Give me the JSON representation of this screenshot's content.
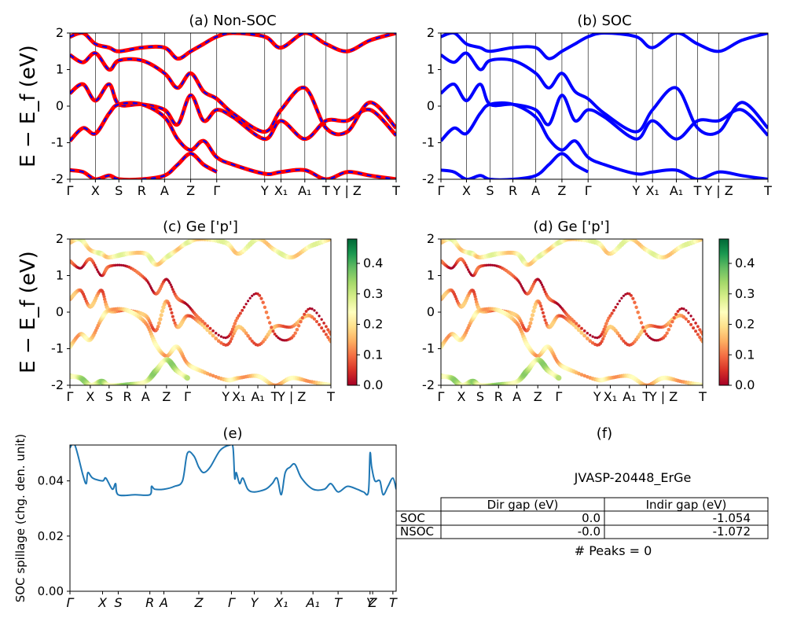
{
  "colors": {
    "nonsoc_line": "#ff0000",
    "soc_line": "#0000ff",
    "nonsoc_dash": "#0000ff",
    "spillage_line": "#1f77b4"
  },
  "panel_a": {
    "title": "(a) Non-SOC",
    "ylabel": "E − E_f (eV)"
  },
  "panel_b": {
    "title": "(b) SOC"
  },
  "panel_c": {
    "title": "(c)  Ge ['p']",
    "ylabel": "E − E_f (eV)"
  },
  "panel_d": {
    "title": "(d) Ge ['p']"
  },
  "panel_e": {
    "title": "(e)",
    "ylabel": "SOC spillage (chg. den. unit)"
  },
  "panel_f": {
    "title": "(f)",
    "material": "JVASP-20448_ErGe",
    "table": {
      "headers": [
        "",
        "Dir gap (eV)",
        "Indir gap (eV)"
      ],
      "rows": [
        [
          "SOC",
          "0.0",
          "-1.054"
        ],
        [
          "NSOC",
          "-0.0",
          "-1.072"
        ]
      ]
    },
    "peaks": "# Peaks = 0"
  },
  "colorbar": {
    "ticks": [
      "0.0",
      "0.1",
      "0.2",
      "0.3",
      "0.4"
    ],
    "max": 0.48,
    "colormap": "RdYlGn"
  },
  "chart_data": [
    {
      "type": "line",
      "panel": "a",
      "title": "(a) Non-SOC",
      "ylabel": "E − E_f (eV)",
      "ylim": [
        -2,
        2
      ],
      "yticks": [
        -2,
        -1,
        0,
        1,
        2
      ],
      "kpath_labels": [
        "Γ",
        "X",
        "S",
        "R",
        "A",
        "Z",
        "Γ",
        "Y",
        "X₁",
        "A₁",
        "T",
        "Y | Z",
        "T"
      ],
      "kpath_positions": [
        0,
        0.078,
        0.15,
        0.22,
        0.29,
        0.37,
        0.45,
        0.597,
        0.647,
        0.72,
        0.785,
        0.85,
        1.0
      ],
      "series": [
        {
          "x": [
            0,
            0.04,
            0.078,
            0.12,
            0.15,
            0.22,
            0.29,
            0.33,
            0.37,
            0.41,
            0.45,
            0.5,
            0.597,
            0.647,
            0.72,
            0.785,
            0.85,
            0.92,
            1.0
          ],
          "y": [
            0.35,
            0.6,
            0.15,
            0.6,
            0.05,
            0.05,
            -0.1,
            -0.5,
            0.3,
            -0.4,
            -0.1,
            -0.3,
            -0.9,
            -0.4,
            -0.9,
            -0.4,
            -0.4,
            -0.1,
            -0.8
          ]
        },
        {
          "x": [
            0,
            0.04,
            0.078,
            0.12,
            0.15,
            0.22,
            0.29,
            0.33,
            0.37,
            0.41,
            0.45,
            0.5,
            0.597,
            0.647,
            0.72,
            0.785,
            0.85,
            0.92,
            1.0
          ],
          "y": [
            1.4,
            1.2,
            1.45,
            1.0,
            1.25,
            1.25,
            0.9,
            0.5,
            0.9,
            0.4,
            0.2,
            -0.2,
            -0.7,
            -0.1,
            0.5,
            -0.6,
            -0.7,
            0.1,
            -0.6
          ]
        },
        {
          "x": [
            0,
            0.04,
            0.078,
            0.12,
            0.15,
            0.22,
            0.29,
            0.33,
            0.37,
            0.41,
            0.45,
            0.5,
            0.597,
            0.647,
            0.72,
            0.785,
            0.85,
            0.92,
            1.0
          ],
          "y": [
            -0.95,
            -0.6,
            -0.75,
            -0.2,
            0.05,
            0.05,
            -0.3,
            -0.9,
            -1.2,
            -0.95,
            -1.4,
            -1.6,
            -1.85,
            -1.8,
            -1.75,
            -2.0,
            -1.8,
            -1.9,
            -2.0
          ]
        },
        {
          "x": [
            0,
            0.04,
            0.078,
            0.12,
            0.15,
            0.22,
            0.29,
            0.33,
            0.37,
            0.41,
            0.45
          ],
          "y": [
            -1.75,
            -1.8,
            -2.0,
            -1.9,
            -2.0,
            -2.0,
            -1.9,
            -1.6,
            -1.3,
            -1.6,
            -1.8
          ]
        },
        {
          "x": [
            0,
            0.04,
            0.078,
            0.12,
            0.15,
            0.22,
            0.29,
            0.33,
            0.37,
            0.41,
            0.45,
            0.5,
            0.597,
            0.647,
            0.72,
            0.785,
            0.85,
            0.92,
            1.0
          ],
          "y": [
            1.9,
            2.0,
            1.7,
            1.6,
            1.5,
            1.6,
            1.6,
            1.3,
            1.5,
            1.7,
            1.9,
            2.0,
            1.9,
            1.6,
            2.0,
            1.7,
            1.5,
            1.8,
            2.0
          ]
        }
      ]
    },
    {
      "type": "line",
      "panel": "b",
      "title": "(b) SOC",
      "ylim": [
        -2,
        2
      ],
      "yticks": [
        -2,
        -1,
        0,
        1,
        2
      ],
      "kpath_labels": [
        "Γ",
        "X",
        "S",
        "R",
        "A",
        "Z",
        "Γ",
        "Y",
        "X₁",
        "A₁",
        "T",
        "Y | Z",
        "T"
      ],
      "kpath_positions": [
        0,
        0.078,
        0.15,
        0.22,
        0.29,
        0.37,
        0.45,
        0.597,
        0.647,
        0.72,
        0.785,
        0.85,
        1.0
      ],
      "series": [
        {
          "x": [
            0,
            0.04,
            0.078,
            0.12,
            0.15,
            0.22,
            0.29,
            0.33,
            0.37,
            0.41,
            0.45,
            0.5,
            0.597,
            0.647,
            0.72,
            0.785,
            0.85,
            0.92,
            1.0
          ],
          "y": [
            0.35,
            0.6,
            0.15,
            0.6,
            0.05,
            0.05,
            -0.1,
            -0.5,
            0.3,
            -0.4,
            -0.1,
            -0.3,
            -0.9,
            -0.4,
            -0.9,
            -0.4,
            -0.4,
            -0.1,
            -0.8
          ]
        },
        {
          "x": [
            0,
            0.04,
            0.078,
            0.12,
            0.15,
            0.22,
            0.29,
            0.33,
            0.37,
            0.41,
            0.45,
            0.5,
            0.597,
            0.647,
            0.72,
            0.785,
            0.85,
            0.92,
            1.0
          ],
          "y": [
            1.4,
            1.2,
            1.45,
            1.0,
            1.25,
            1.25,
            0.9,
            0.5,
            0.9,
            0.4,
            0.2,
            -0.2,
            -0.7,
            -0.1,
            0.5,
            -0.6,
            -0.7,
            0.1,
            -0.6
          ]
        },
        {
          "x": [
            0,
            0.04,
            0.078,
            0.12,
            0.15,
            0.22,
            0.29,
            0.33,
            0.37,
            0.41,
            0.45,
            0.5,
            0.597,
            0.647,
            0.72,
            0.785,
            0.85,
            0.92,
            1.0
          ],
          "y": [
            -0.95,
            -0.6,
            -0.75,
            -0.2,
            0.05,
            0.05,
            -0.3,
            -0.9,
            -1.2,
            -0.95,
            -1.4,
            -1.6,
            -1.85,
            -1.8,
            -1.75,
            -2.0,
            -1.8,
            -1.9,
            -2.0
          ]
        },
        {
          "x": [
            0,
            0.04,
            0.078,
            0.12,
            0.15,
            0.22,
            0.29,
            0.33,
            0.37,
            0.41,
            0.45
          ],
          "y": [
            -1.75,
            -1.8,
            -2.0,
            -1.9,
            -2.0,
            -2.0,
            -1.9,
            -1.6,
            -1.3,
            -1.6,
            -1.8
          ]
        },
        {
          "x": [
            0,
            0.04,
            0.078,
            0.12,
            0.15,
            0.22,
            0.29,
            0.33,
            0.37,
            0.41,
            0.45,
            0.5,
            0.597,
            0.647,
            0.72,
            0.785,
            0.85,
            0.92,
            1.0
          ],
          "y": [
            1.9,
            2.0,
            1.7,
            1.6,
            1.5,
            1.6,
            1.6,
            1.3,
            1.5,
            1.7,
            1.9,
            2.0,
            1.9,
            1.6,
            2.0,
            1.7,
            1.5,
            1.8,
            2.0
          ]
        }
      ]
    },
    {
      "type": "scatter",
      "panel": "c",
      "title": "(c)  Ge ['p']",
      "ylabel": "E − E_f (eV)",
      "ylim": [
        -2,
        2
      ],
      "yticks": [
        -2,
        -1,
        0,
        1,
        2
      ],
      "kpath_labels": [
        "Γ",
        "X",
        "S",
        "R",
        "A",
        "Z",
        "Γ",
        "Y",
        "X₁",
        "A₁",
        "T",
        "Y | Z",
        "T"
      ],
      "kpath_positions": [
        0,
        0.078,
        0.15,
        0.22,
        0.29,
        0.37,
        0.45,
        0.597,
        0.647,
        0.72,
        0.785,
        0.85,
        1.0
      ],
      "band_weights": [
        0.12,
        0.05,
        0.18,
        0.3,
        0.22
      ],
      "note": "projected weights of Ge p orbitals, colored 0.0–0.48"
    },
    {
      "type": "scatter",
      "panel": "d",
      "title": "(d) Ge ['p']",
      "ylim": [
        -2,
        2
      ],
      "yticks": [
        -2,
        -1,
        0,
        1,
        2
      ],
      "kpath_labels": [
        "Γ",
        "X",
        "S",
        "R",
        "A",
        "Z",
        "Γ",
        "Y",
        "X₁",
        "A₁",
        "T",
        "Y | Z",
        "T"
      ],
      "kpath_positions": [
        0,
        0.078,
        0.15,
        0.22,
        0.29,
        0.37,
        0.45,
        0.597,
        0.647,
        0.72,
        0.785,
        0.85,
        1.0
      ],
      "band_weights": [
        0.12,
        0.05,
        0.18,
        0.3,
        0.22
      ]
    },
    {
      "type": "line",
      "panel": "e",
      "title": "(e)",
      "ylabel": "SOC spillage (chg. den. unit)",
      "ylim": [
        0,
        0.053
      ],
      "yticks": [
        0.0,
        0.02,
        0.04
      ],
      "xtick_labels": [
        "Γ",
        "X",
        "S",
        "R",
        "A",
        "Z",
        "Γ",
        "Y",
        "X₁",
        "A₁",
        "T",
        "Y",
        "Z",
        "T"
      ],
      "xtick_positions": [
        0,
        0.1,
        0.148,
        0.245,
        0.288,
        0.395,
        0.495,
        0.565,
        0.648,
        0.745,
        0.822,
        0.92,
        0.928,
        0.99
      ],
      "x": [
        0,
        0.015,
        0.04,
        0.05,
        0.055,
        0.07,
        0.1,
        0.11,
        0.13,
        0.14,
        0.148,
        0.2,
        0.245,
        0.25,
        0.26,
        0.288,
        0.32,
        0.345,
        0.36,
        0.38,
        0.395,
        0.41,
        0.43,
        0.46,
        0.49,
        0.5,
        0.505,
        0.51,
        0.52,
        0.53,
        0.545,
        0.565,
        0.6,
        0.62,
        0.635,
        0.648,
        0.66,
        0.675,
        0.69,
        0.71,
        0.745,
        0.78,
        0.8,
        0.822,
        0.85,
        0.88,
        0.9,
        0.915,
        0.92,
        0.925,
        0.935,
        0.95,
        0.96,
        0.975,
        0.99,
        1.0
      ],
      "y": [
        0.052,
        0.053,
        0.042,
        0.039,
        0.043,
        0.041,
        0.04,
        0.041,
        0.037,
        0.039,
        0.035,
        0.035,
        0.035,
        0.038,
        0.037,
        0.037,
        0.038,
        0.04,
        0.05,
        0.049,
        0.045,
        0.043,
        0.045,
        0.051,
        0.053,
        0.052,
        0.041,
        0.043,
        0.039,
        0.041,
        0.037,
        0.036,
        0.037,
        0.039,
        0.041,
        0.035,
        0.043,
        0.045,
        0.046,
        0.041,
        0.037,
        0.037,
        0.039,
        0.036,
        0.038,
        0.037,
        0.036,
        0.036,
        0.05,
        0.045,
        0.04,
        0.04,
        0.035,
        0.038,
        0.041,
        0.037
      ]
    }
  ]
}
